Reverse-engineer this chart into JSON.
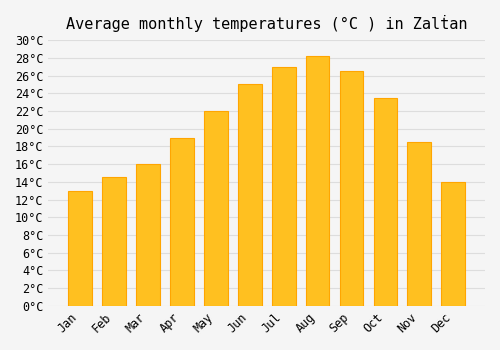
{
  "title": "Average monthly temperatures (°C ) in Zalṫan",
  "months": [
    "Jan",
    "Feb",
    "Mar",
    "Apr",
    "May",
    "Jun",
    "Jul",
    "Aug",
    "Sep",
    "Oct",
    "Nov",
    "Dec"
  ],
  "values": [
    13,
    14.5,
    16,
    19,
    22,
    25,
    27,
    28.2,
    26.5,
    23.5,
    18.5,
    14
  ],
  "bar_color_face": "#FFC020",
  "bar_color_edge": "#FFA500",
  "background_color": "#F5F5F5",
  "grid_color": "#DDDDDD",
  "ylim": [
    0,
    30
  ],
  "ytick_step": 2,
  "title_fontsize": 11,
  "tick_fontsize": 8.5,
  "font_family": "monospace"
}
